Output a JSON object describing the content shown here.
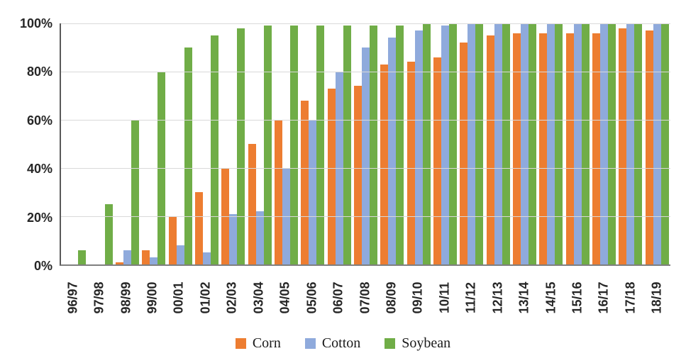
{
  "chart_data": {
    "type": "bar",
    "title": "",
    "xlabel": "",
    "ylabel": "",
    "ylim": [
      0,
      100
    ],
    "grid": true,
    "legend_position": "bottom",
    "yticks": [
      "0%",
      "20%",
      "40%",
      "60%",
      "80%",
      "100%"
    ],
    "ytick_values": [
      0,
      20,
      40,
      60,
      80,
      100
    ],
    "categories": [
      "96/97",
      "97/98",
      "98/99",
      "99/00",
      "00/01",
      "01/02",
      "02/03",
      "03/04",
      "04/05",
      "05/06",
      "06/07",
      "07/08",
      "08/09",
      "09/10",
      "10/11",
      "11/12",
      "12/13",
      "13/14",
      "14/15",
      "15/16",
      "16/17",
      "17/18",
      "18/19"
    ],
    "series": [
      {
        "name": "Corn",
        "color": "#ED7D31",
        "values": [
          0,
          0,
          1,
          6,
          20,
          30,
          40,
          50,
          60,
          68,
          73,
          74,
          83,
          84,
          86,
          92,
          95,
          96,
          96,
          96,
          96,
          98,
          97
        ]
      },
      {
        "name": "Cotton",
        "color": "#8FAADC",
        "values": [
          0,
          0,
          6,
          3,
          8,
          5,
          21,
          22,
          40,
          60,
          80,
          90,
          94,
          97,
          99,
          100,
          100,
          100,
          100,
          100,
          100,
          100,
          100
        ]
      },
      {
        "name": "Soybean",
        "color": "#70AD47",
        "values": [
          6,
          25,
          60,
          80,
          90,
          95,
          98,
          99,
          99,
          99,
          99,
          99,
          99,
          100,
          100,
          100,
          100,
          100,
          100,
          100,
          100,
          100,
          100
        ]
      }
    ],
    "colors": {
      "gridline": "#D9D9D9",
      "y_axis_line": "#595959",
      "x_axis_line": "#7F7F7F",
      "tick_text": "#262626"
    }
  }
}
